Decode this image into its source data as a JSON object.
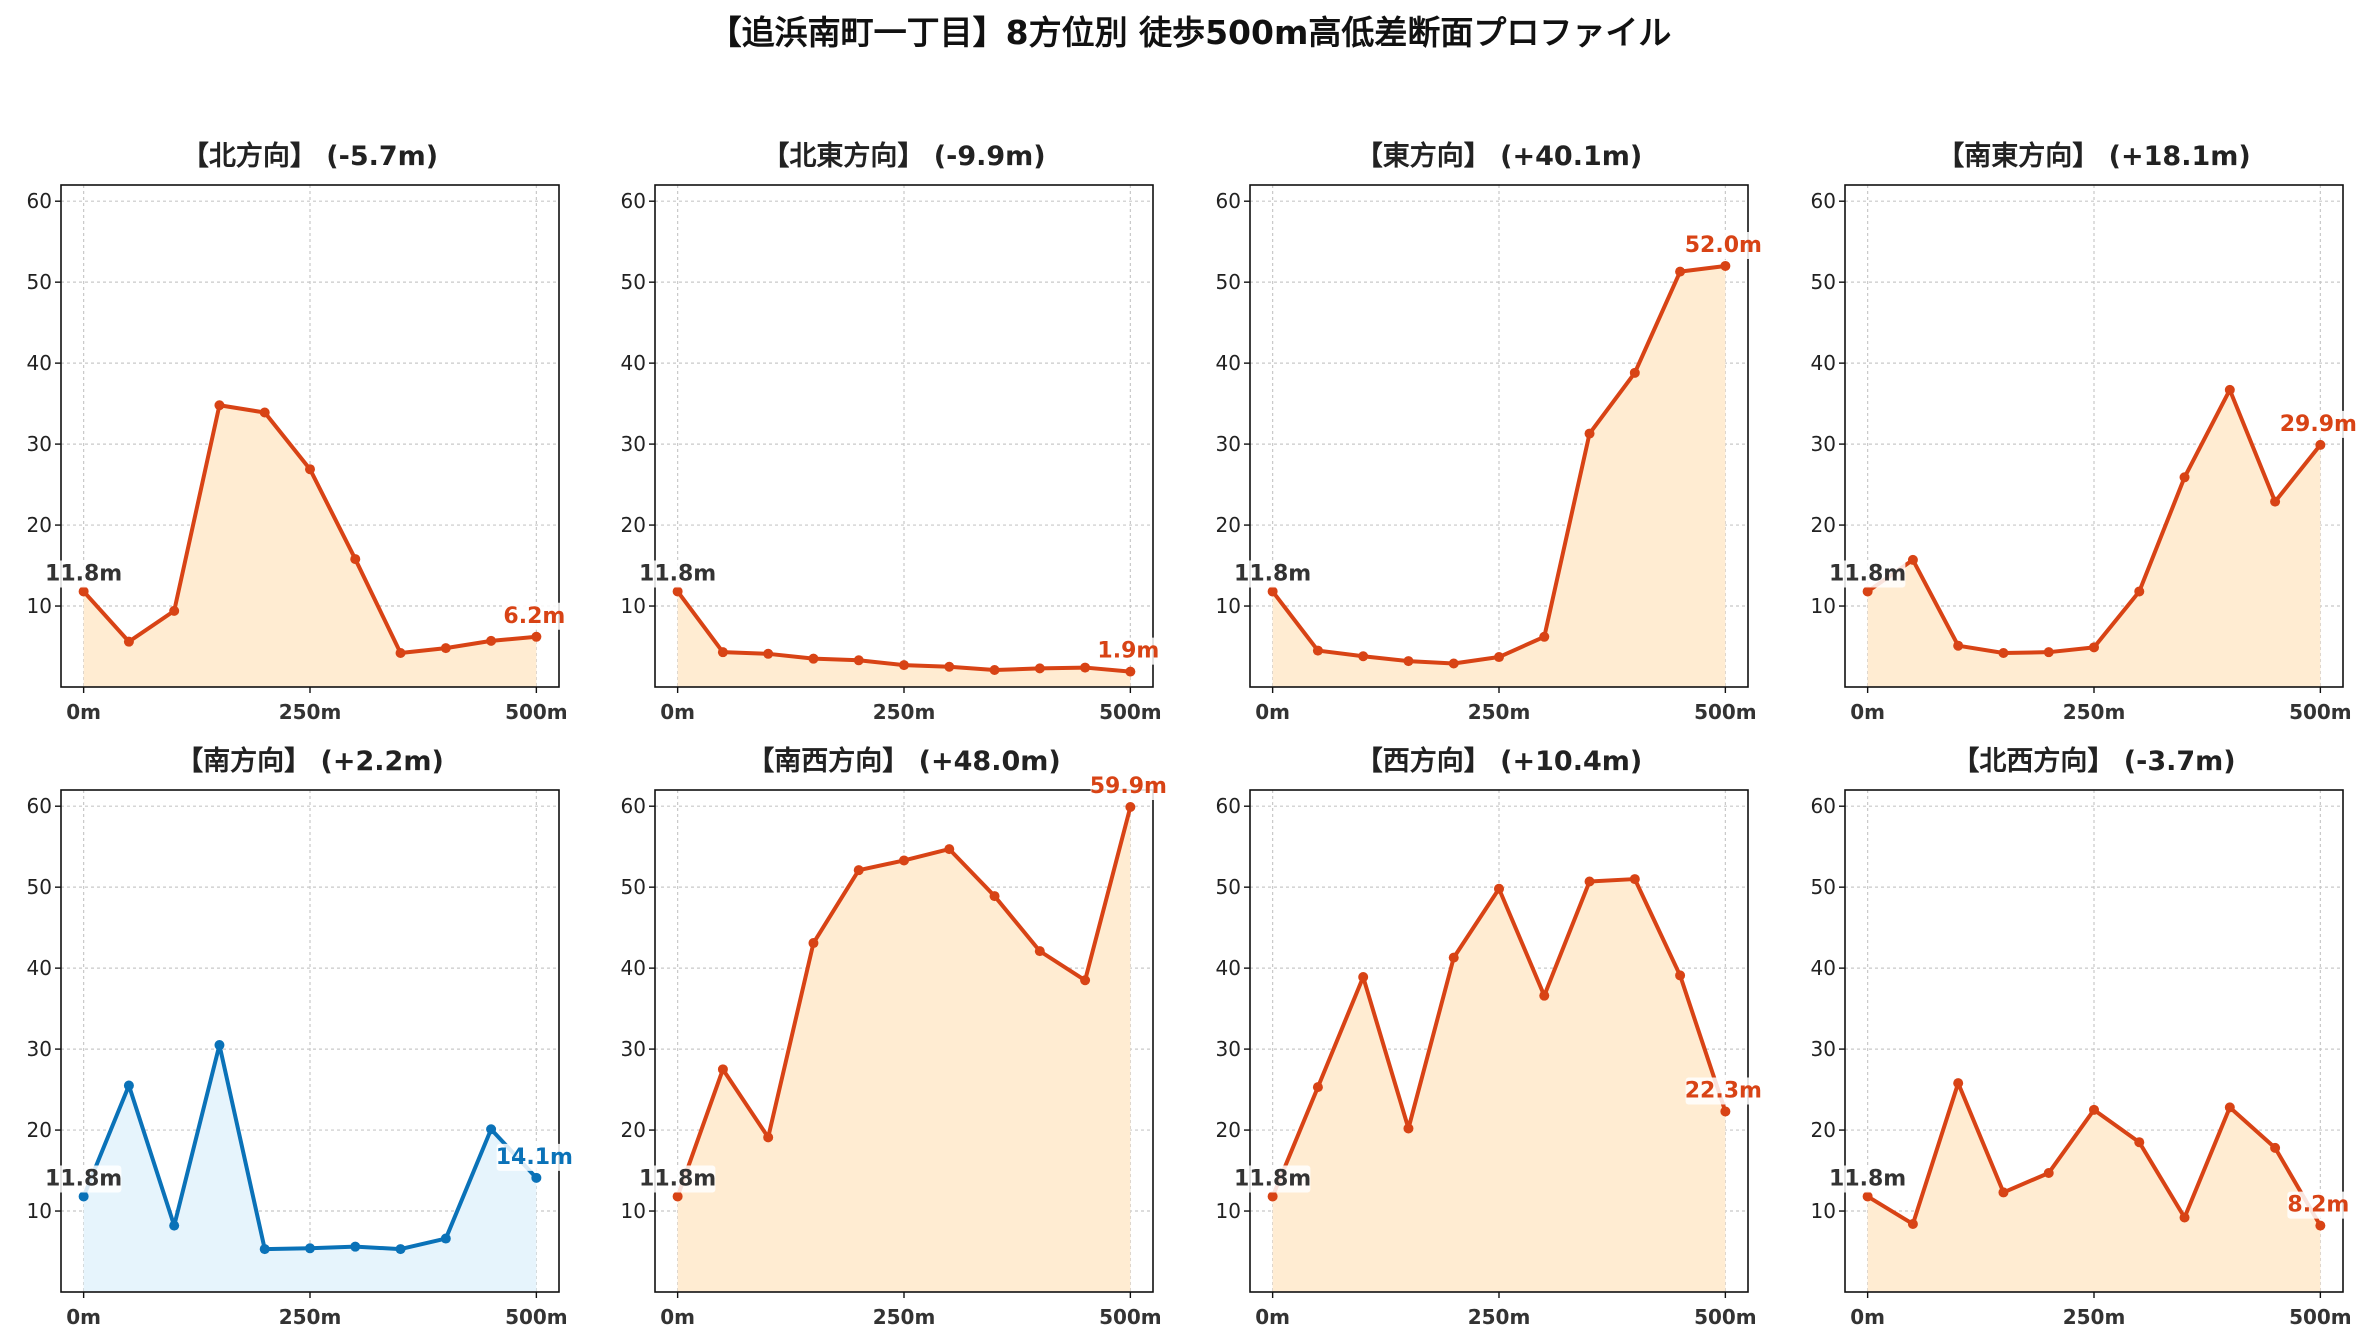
{
  "figure": {
    "title": "【追浜南町一丁目】8方位別 徒歩500m高低差断面プロファイル"
  },
  "colors": {
    "up": "#d84315",
    "up_fill": "#ffecd2",
    "down": "#0a72b8",
    "down_fill": "#e6f4fc",
    "start_label": "#333333"
  },
  "chart_data": [
    {
      "type": "area",
      "title": "【北方向】 (-5.7m)",
      "x": [
        0,
        50,
        100,
        150,
        200,
        250,
        300,
        350,
        400,
        450,
        500
      ],
      "values": [
        11.8,
        5.6,
        9.4,
        34.8,
        33.9,
        26.9,
        15.8,
        4.2,
        4.8,
        5.7,
        6.2
      ],
      "xticks": [
        "0m",
        "250m",
        "500m"
      ],
      "yticks": [
        10,
        20,
        30,
        40,
        50,
        60
      ],
      "ylim": [
        0,
        62
      ],
      "xlim": [
        -25,
        525
      ],
      "grid": true,
      "start_label": "11.8m",
      "end_label": "6.2m",
      "color": "up"
    },
    {
      "type": "area",
      "title": "【北東方向】 (-9.9m)",
      "x": [
        0,
        50,
        100,
        150,
        200,
        250,
        300,
        350,
        400,
        450,
        500
      ],
      "values": [
        11.8,
        4.3,
        4.1,
        3.5,
        3.3,
        2.7,
        2.5,
        2.1,
        2.3,
        2.4,
        1.9
      ],
      "xticks": [
        "0m",
        "250m",
        "500m"
      ],
      "yticks": [
        10,
        20,
        30,
        40,
        50,
        60
      ],
      "ylim": [
        0,
        62
      ],
      "xlim": [
        -25,
        525
      ],
      "grid": true,
      "start_label": "11.8m",
      "end_label": "1.9m",
      "color": "up"
    },
    {
      "type": "area",
      "title": "【東方向】 (+40.1m)",
      "x": [
        0,
        50,
        100,
        150,
        200,
        250,
        300,
        350,
        400,
        450,
        500
      ],
      "values": [
        11.8,
        4.5,
        3.8,
        3.2,
        2.9,
        3.7,
        6.2,
        31.3,
        38.8,
        51.3,
        52.0
      ],
      "xticks": [
        "0m",
        "250m",
        "500m"
      ],
      "yticks": [
        10,
        20,
        30,
        40,
        50,
        60
      ],
      "ylim": [
        0,
        62
      ],
      "xlim": [
        -25,
        525
      ],
      "grid": true,
      "start_label": "11.8m",
      "end_label": "52.0m",
      "color": "up"
    },
    {
      "type": "area",
      "title": "【南東方向】 (+18.1m)",
      "x": [
        0,
        50,
        100,
        150,
        200,
        250,
        300,
        350,
        400,
        450,
        500
      ],
      "values": [
        11.8,
        15.7,
        5.1,
        4.2,
        4.3,
        4.9,
        11.8,
        25.9,
        36.7,
        22.9,
        29.9
      ],
      "xticks": [
        "0m",
        "250m",
        "500m"
      ],
      "yticks": [
        10,
        20,
        30,
        40,
        50,
        60
      ],
      "ylim": [
        0,
        62
      ],
      "xlim": [
        -25,
        525
      ],
      "grid": true,
      "start_label": "11.8m",
      "end_label": "29.9m",
      "color": "up"
    },
    {
      "type": "area",
      "title": "【南方向】 (+2.2m)",
      "x": [
        0,
        50,
        100,
        150,
        200,
        250,
        300,
        350,
        400,
        450,
        500
      ],
      "values": [
        11.8,
        25.5,
        8.2,
        30.5,
        5.3,
        5.4,
        5.6,
        5.3,
        6.6,
        20.1,
        14.1
      ],
      "xticks": [
        "0m",
        "250m",
        "500m"
      ],
      "yticks": [
        10,
        20,
        30,
        40,
        50,
        60
      ],
      "ylim": [
        0,
        62
      ],
      "xlim": [
        -25,
        525
      ],
      "grid": true,
      "start_label": "11.8m",
      "end_label": "14.1m",
      "color": "down"
    },
    {
      "type": "area",
      "title": "【南西方向】 (+48.0m)",
      "x": [
        0,
        50,
        100,
        150,
        200,
        250,
        300,
        350,
        400,
        450,
        500
      ],
      "values": [
        11.8,
        27.5,
        19.1,
        43.1,
        52.1,
        53.3,
        54.7,
        48.9,
        42.1,
        38.5,
        59.9
      ],
      "xticks": [
        "0m",
        "250m",
        "500m"
      ],
      "yticks": [
        10,
        20,
        30,
        40,
        50,
        60
      ],
      "ylim": [
        0,
        62
      ],
      "xlim": [
        -25,
        525
      ],
      "grid": true,
      "start_label": "11.8m",
      "end_label": "59.9m",
      "color": "up"
    },
    {
      "type": "area",
      "title": "【西方向】 (+10.4m)",
      "x": [
        0,
        50,
        100,
        150,
        200,
        250,
        300,
        350,
        400,
        450,
        500
      ],
      "values": [
        11.8,
        25.3,
        38.9,
        20.2,
        41.3,
        49.8,
        36.6,
        50.7,
        51.0,
        39.1,
        22.3
      ],
      "xticks": [
        "0m",
        "250m",
        "500m"
      ],
      "yticks": [
        10,
        20,
        30,
        40,
        50,
        60
      ],
      "ylim": [
        0,
        62
      ],
      "xlim": [
        -25,
        525
      ],
      "grid": true,
      "start_label": "11.8m",
      "end_label": "22.3m",
      "color": "up"
    },
    {
      "type": "area",
      "title": "【北西方向】 (-3.7m)",
      "x": [
        0,
        50,
        100,
        150,
        200,
        250,
        300,
        350,
        400,
        450,
        500
      ],
      "values": [
        11.8,
        8.4,
        25.8,
        12.3,
        14.7,
        22.5,
        18.5,
        9.2,
        22.8,
        17.8,
        8.2
      ],
      "xticks": [
        "0m",
        "250m",
        "500m"
      ],
      "yticks": [
        10,
        20,
        30,
        40,
        50,
        60
      ],
      "ylim": [
        0,
        62
      ],
      "xlim": [
        -25,
        525
      ],
      "grid": true,
      "start_label": "11.8m",
      "end_label": "8.2m",
      "color": "up"
    }
  ]
}
